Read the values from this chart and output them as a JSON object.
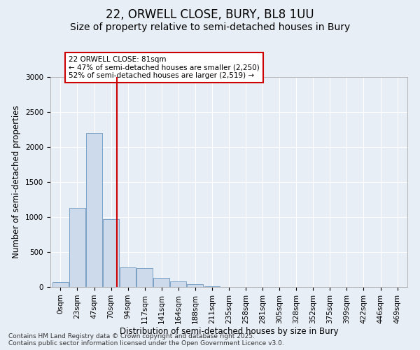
{
  "title_line1": "22, ORWELL CLOSE, BURY, BL8 1UU",
  "title_line2": "Size of property relative to semi-detached houses in Bury",
  "xlabel": "Distribution of semi-detached houses by size in Bury",
  "ylabel": "Number of semi-detached properties",
  "bar_labels": [
    "0sqm",
    "23sqm",
    "47sqm",
    "70sqm",
    "94sqm",
    "117sqm",
    "141sqm",
    "164sqm",
    "188sqm",
    "211sqm",
    "235sqm",
    "258sqm",
    "281sqm",
    "305sqm",
    "328sqm",
    "352sqm",
    "375sqm",
    "399sqm",
    "422sqm",
    "446sqm",
    "469sqm"
  ],
  "bar_values": [
    75,
    1130,
    2200,
    970,
    280,
    270,
    130,
    80,
    40,
    10,
    5,
    3,
    2,
    1,
    0,
    0,
    0,
    0,
    0,
    0,
    0
  ],
  "bar_color": "#ccdaeb",
  "bar_edgecolor": "#7aa0c4",
  "bar_linewidth": 0.7,
  "vline_x": 3.35,
  "vline_color": "#cc0000",
  "annotation_text": "22 ORWELL CLOSE: 81sqm\n← 47% of semi-detached houses are smaller (2,250)\n52% of semi-detached houses are larger (2,519) →",
  "annotation_box_color": "#ffffff",
  "annotation_box_edgecolor": "#cc0000",
  "ylim": [
    0,
    3000
  ],
  "yticks": [
    0,
    500,
    1000,
    1500,
    2000,
    2500,
    3000
  ],
  "background_color": "#e8eef6",
  "plot_background": "#e8eef6",
  "footer_line1": "Contains HM Land Registry data © Crown copyright and database right 2025.",
  "footer_line2": "Contains public sector information licensed under the Open Government Licence v3.0.",
  "title_fontsize": 12,
  "subtitle_fontsize": 10,
  "axis_label_fontsize": 8.5,
  "tick_fontsize": 7.5,
  "annotation_fontsize": 7.5,
  "footer_fontsize": 6.5
}
